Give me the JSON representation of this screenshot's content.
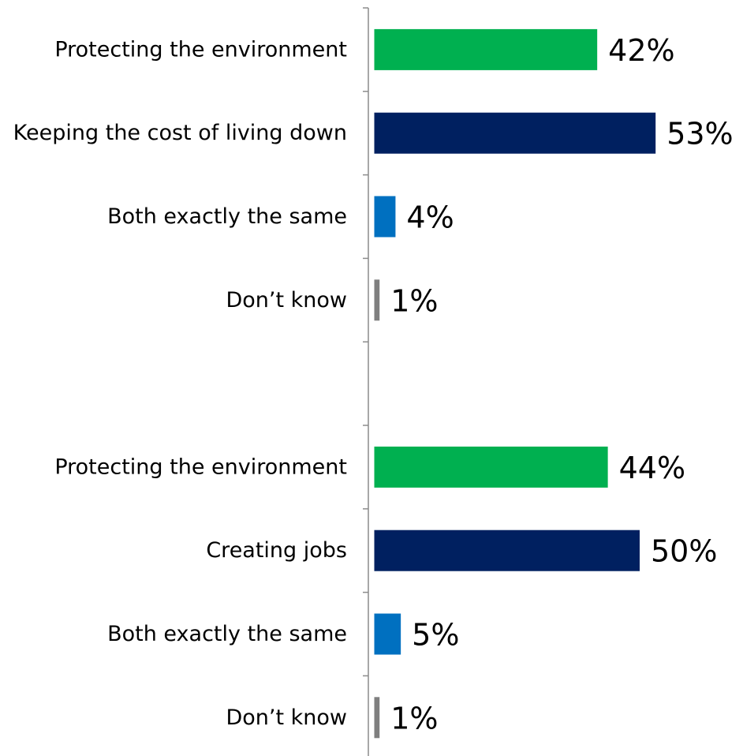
{
  "chart_data": {
    "type": "bar",
    "orientation": "horizontal",
    "value_unit": "%",
    "xlim": [
      0,
      60
    ],
    "grid": false,
    "legend": "none",
    "colors": {
      "green": "#00b050",
      "navy": "#002060",
      "blue": "#0070c0",
      "gray": "#7f7f7f"
    },
    "categories": [
      "Protecting the environment",
      "Keeping the cost of living down",
      "Both exactly the same",
      "Don’t know",
      "",
      "Protecting the environment",
      "Creating jobs",
      "Both exactly the same",
      "Don’t know"
    ],
    "values": [
      42,
      53,
      4,
      1,
      null,
      44,
      50,
      5,
      1
    ],
    "value_labels": [
      "42%",
      "53%",
      "4%",
      "1%",
      "",
      "44%",
      "50%",
      "5%",
      "1%"
    ],
    "bar_colors": [
      "green",
      "navy",
      "blue",
      "gray",
      "",
      "green",
      "navy",
      "blue",
      "gray"
    ]
  }
}
